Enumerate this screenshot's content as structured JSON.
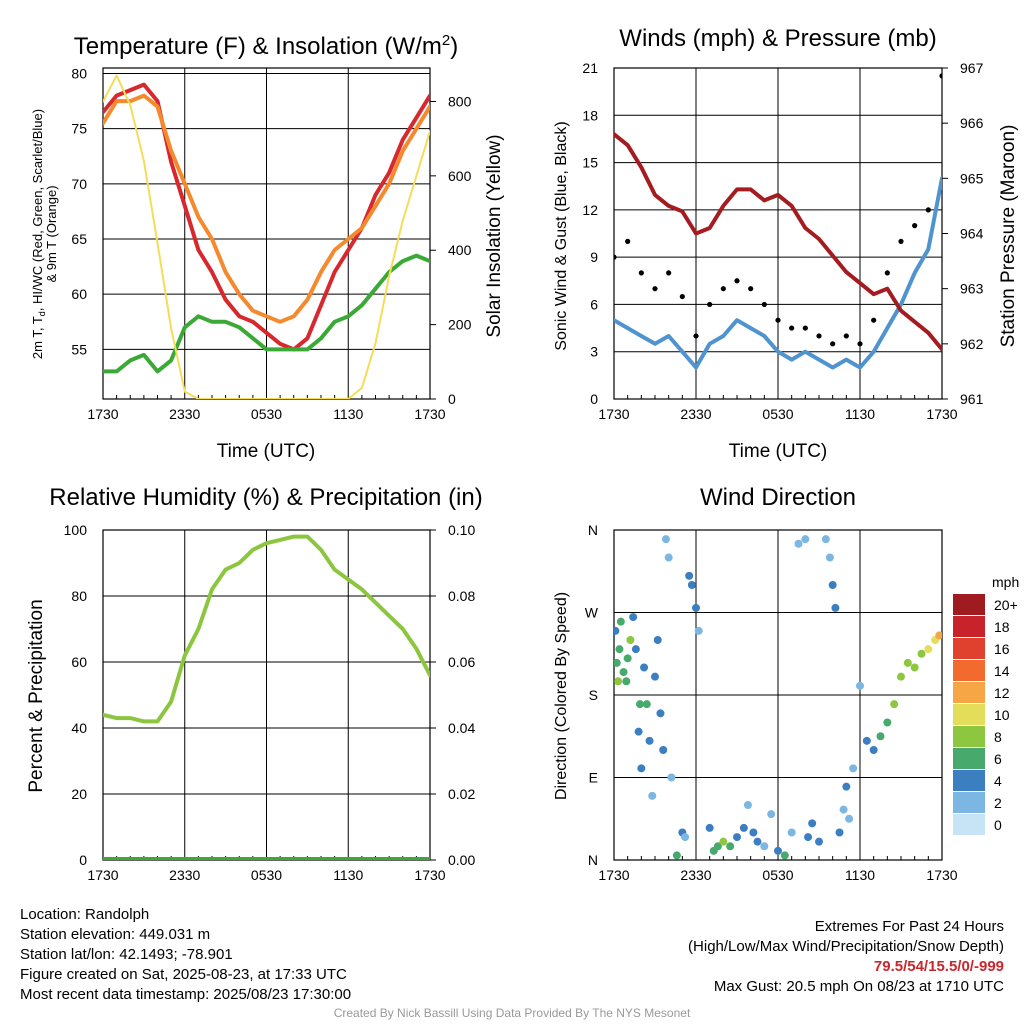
{
  "colors": {
    "temp": "#d7282e",
    "dewpoint": "#3aa935",
    "hiwc": "#e8b0b0",
    "temp9m": "#f48a2d",
    "insolation": "#f5dc5a",
    "wind": "#4f93cf",
    "gust": "#000000",
    "pressure": "#a51c20",
    "rh": "#8cc63f",
    "precip": "#3aa935"
  },
  "panels": {
    "temp": {
      "title": "Temperature (F) & Insolation (W/m²)",
      "ylabel_left": "2m T, Td, HI/WC (Red, Green, Scarlet/Blue) & 9m T (Orange)",
      "ylabel_right": "Solar Insolation (Yellow)",
      "xlabel": "Time (UTC)"
    },
    "winds": {
      "title": "Winds (mph) & Pressure (mb)",
      "ylabel_left": "Sonic Wind & Gust (Blue, Black)",
      "ylabel_right": "Station Pressure (Maroon)",
      "xlabel": "Time (UTC)"
    },
    "rh": {
      "title": "Relative Humidity (%) & Precipitation (in)",
      "ylabel_left": "Percent & Precipitation"
    },
    "dir": {
      "title": "Wind Direction",
      "ylabel_left": "Direction (Colored By Speed)",
      "legend_title": "mph",
      "legend_labels": [
        "20+",
        "18",
        "16",
        "14",
        "12",
        "10",
        "8",
        "6",
        "4",
        "2",
        "0"
      ],
      "legend_colors": [
        "#a01b1f",
        "#c8232a",
        "#e0402e",
        "#f26a2e",
        "#f7a645",
        "#e4dd5a",
        "#8dc63f",
        "#47a96b",
        "#3b7fc0",
        "#7bb7e2",
        "#c7e4f6"
      ]
    }
  },
  "chart_data": [
    {
      "type": "line",
      "title": "Temperature (F) & Insolation (W/m²)",
      "xlabel": "Time (UTC)",
      "x_ticks": [
        "1730",
        "2330",
        "0530",
        "1130",
        "1730"
      ],
      "y_ticks_left": [
        "55",
        "60",
        "65",
        "70",
        "75",
        "80"
      ],
      "y_ticks_right": [
        "0",
        "200",
        "400",
        "600",
        "800"
      ],
      "ylim_left": [
        50.5,
        80.5
      ],
      "ylim_right": [
        0,
        890
      ],
      "x_hours": [
        0,
        1,
        2,
        3,
        4,
        5,
        6,
        7,
        8,
        9,
        10,
        11,
        12,
        13,
        14,
        15,
        16,
        17,
        18,
        19,
        20,
        21,
        22,
        23,
        24
      ],
      "series": [
        {
          "name": "2m T",
          "axis": "left",
          "color": "temp",
          "values": [
            76.5,
            78,
            78.5,
            79,
            77.5,
            72,
            68,
            64,
            62,
            59.5,
            58,
            57.5,
            56.5,
            55.5,
            55,
            56,
            59,
            62,
            64,
            66,
            69,
            71,
            74,
            76,
            78
          ]
        },
        {
          "name": "9m T",
          "axis": "left",
          "color": "temp9m",
          "values": [
            75.5,
            77.5,
            77.5,
            78,
            77,
            73,
            70,
            67,
            65,
            62,
            60,
            58.5,
            58,
            57.5,
            58,
            59.5,
            62,
            64,
            65,
            66,
            68,
            70,
            73,
            75,
            77
          ]
        },
        {
          "name": "Td",
          "axis": "left",
          "color": "dewpoint",
          "values": [
            53,
            53,
            54,
            54.5,
            53,
            54,
            57,
            58,
            57.5,
            57.5,
            57,
            56,
            55,
            55,
            55,
            55,
            56,
            57.5,
            58,
            59,
            60.5,
            62,
            63,
            63.5,
            63
          ]
        },
        {
          "name": "Insolation",
          "axis": "right",
          "color": "insolation",
          "values": [
            800,
            870,
            790,
            640,
            420,
            190,
            20,
            0,
            0,
            0,
            0,
            0,
            0,
            0,
            0,
            0,
            0,
            0,
            0,
            30,
            150,
            330,
            480,
            600,
            720
          ]
        }
      ]
    },
    {
      "type": "line",
      "title": "Winds (mph) & Pressure (mb)",
      "xlabel": "Time (UTC)",
      "x_ticks": [
        "1730",
        "2330",
        "0530",
        "1130",
        "1730"
      ],
      "y_ticks_left": [
        "0",
        "3",
        "6",
        "9",
        "12",
        "15",
        "18",
        "21"
      ],
      "y_ticks_right": [
        "961",
        "962",
        "963",
        "964",
        "965",
        "966",
        "967"
      ],
      "ylim_left": [
        0,
        21
      ],
      "ylim_right": [
        961,
        967
      ],
      "x_hours": [
        0,
        1,
        2,
        3,
        4,
        5,
        6,
        7,
        8,
        9,
        10,
        11,
        12,
        13,
        14,
        15,
        16,
        17,
        18,
        19,
        20,
        21,
        22,
        23,
        24
      ],
      "series": [
        {
          "name": "Sonic Wind",
          "axis": "left",
          "color": "wind",
          "values": [
            5,
            4.5,
            4,
            3.5,
            4,
            3,
            2,
            3.5,
            4,
            5,
            4.5,
            4,
            3,
            2.5,
            3,
            2.5,
            2,
            2.5,
            2,
            3,
            4.5,
            6,
            8,
            9.5,
            14
          ]
        },
        {
          "name": "Gust",
          "axis": "left",
          "color": "gust",
          "values": [
            9,
            10,
            8,
            7,
            8,
            6.5,
            4,
            6,
            7,
            7.5,
            7,
            6,
            5,
            4.5,
            4.5,
            4,
            3.5,
            4,
            3.5,
            5,
            8,
            10,
            11,
            12,
            20.5
          ]
        },
        {
          "name": "Station Pressure",
          "axis": "right",
          "color": "pressure",
          "values": [
            965.8,
            965.6,
            965.2,
            964.7,
            964.5,
            964.4,
            964.0,
            964.1,
            964.5,
            964.8,
            964.8,
            964.6,
            964.7,
            964.5,
            964.1,
            963.9,
            963.6,
            963.3,
            963.1,
            962.9,
            963.0,
            962.6,
            962.4,
            962.2,
            961.9
          ]
        }
      ]
    },
    {
      "type": "line",
      "title": "Relative Humidity (%) & Precipitation (in)",
      "x_ticks": [
        "1730",
        "2330",
        "0530",
        "1130",
        "1730"
      ],
      "y_ticks_left": [
        "0",
        "20",
        "40",
        "60",
        "80",
        "100"
      ],
      "y_ticks_right": [
        "0.00",
        "0.02",
        "0.04",
        "0.06",
        "0.08",
        "0.10"
      ],
      "ylim_left": [
        0,
        100
      ],
      "ylim_right": [
        0,
        0.1
      ],
      "x_hours": [
        0,
        1,
        2,
        3,
        4,
        5,
        6,
        7,
        8,
        9,
        10,
        11,
        12,
        13,
        14,
        15,
        16,
        17,
        18,
        19,
        20,
        21,
        22,
        23,
        24
      ],
      "series": [
        {
          "name": "RH",
          "axis": "left",
          "color": "rh",
          "values": [
            44,
            43,
            43,
            42,
            42,
            48,
            62,
            70,
            82,
            88,
            90,
            94,
            96,
            97,
            98,
            98,
            94,
            88,
            85,
            82,
            78,
            74,
            70,
            64,
            56
          ]
        },
        {
          "name": "Precipitation",
          "axis": "right",
          "color": "precip",
          "values": [
            0,
            0,
            0,
            0,
            0,
            0,
            0,
            0,
            0,
            0,
            0,
            0,
            0,
            0,
            0,
            0,
            0,
            0,
            0,
            0,
            0,
            0,
            0,
            0,
            0
          ]
        }
      ]
    },
    {
      "type": "scatter",
      "title": "Wind Direction",
      "x_ticks": [
        "1730",
        "2330",
        "0530",
        "1130",
        "1730"
      ],
      "y_ticks": [
        "N",
        "E",
        "S",
        "W",
        "N"
      ],
      "ylim": [
        0,
        360
      ],
      "points": [
        [
          0.1,
          250,
          4
        ],
        [
          0.2,
          215,
          6
        ],
        [
          0.3,
          195,
          7
        ],
        [
          0.4,
          230,
          5
        ],
        [
          0.5,
          260,
          5
        ],
        [
          0.7,
          205,
          6
        ],
        [
          0.9,
          195,
          6
        ],
        [
          1.0,
          220,
          6
        ],
        [
          1.2,
          240,
          7
        ],
        [
          1.4,
          265,
          3
        ],
        [
          1.6,
          230,
          4
        ],
        [
          1.8,
          140,
          4
        ],
        [
          1.9,
          170,
          5
        ],
        [
          2.0,
          100,
          4
        ],
        [
          2.2,
          210,
          3
        ],
        [
          2.4,
          170,
          5
        ],
        [
          2.6,
          130,
          4
        ],
        [
          2.8,
          70,
          2
        ],
        [
          3.0,
          200,
          4
        ],
        [
          3.2,
          240,
          4
        ],
        [
          3.4,
          160,
          3
        ],
        [
          3.6,
          120,
          3
        ],
        [
          3.8,
          350,
          1
        ],
        [
          4.0,
          330,
          1
        ],
        [
          4.2,
          90,
          2
        ],
        [
          4.6,
          5,
          6
        ],
        [
          5.0,
          30,
          4
        ],
        [
          5.2,
          25,
          2
        ],
        [
          5.5,
          310,
          3
        ],
        [
          5.7,
          300,
          4
        ],
        [
          6.0,
          275,
          3
        ],
        [
          6.2,
          250,
          2
        ],
        [
          7.0,
          35,
          4
        ],
        [
          7.3,
          10,
          5
        ],
        [
          7.6,
          15,
          6
        ],
        [
          8.0,
          20,
          7
        ],
        [
          8.5,
          15,
          6
        ],
        [
          9.0,
          25,
          3
        ],
        [
          9.5,
          35,
          4
        ],
        [
          9.8,
          60,
          2
        ],
        [
          10.2,
          30,
          4
        ],
        [
          10.5,
          20,
          3
        ],
        [
          11.0,
          15,
          2
        ],
        [
          11.5,
          50,
          2
        ],
        [
          12.0,
          10,
          4
        ],
        [
          12.5,
          5,
          5
        ],
        [
          13.0,
          30,
          2
        ],
        [
          13.5,
          345,
          2
        ],
        [
          14.0,
          350,
          1
        ],
        [
          14.2,
          25,
          3
        ],
        [
          14.5,
          40,
          3
        ],
        [
          15.0,
          20,
          4
        ],
        [
          15.5,
          350,
          2
        ],
        [
          15.8,
          330,
          2
        ],
        [
          16.0,
          300,
          3
        ],
        [
          16.2,
          275,
          3
        ],
        [
          16.5,
          30,
          4
        ],
        [
          16.8,
          55,
          2
        ],
        [
          17.0,
          80,
          3
        ],
        [
          17.2,
          45,
          2
        ],
        [
          17.5,
          100,
          2
        ],
        [
          18.0,
          190,
          1
        ],
        [
          18.5,
          130,
          3
        ],
        [
          19.0,
          120,
          4
        ],
        [
          19.5,
          135,
          5
        ],
        [
          20.0,
          150,
          6
        ],
        [
          20.5,
          170,
          7
        ],
        [
          21.0,
          200,
          7
        ],
        [
          21.5,
          215,
          7
        ],
        [
          22.0,
          210,
          8
        ],
        [
          22.5,
          225,
          8
        ],
        [
          23.0,
          230,
          9
        ],
        [
          23.5,
          240,
          9
        ],
        [
          23.8,
          245,
          11
        ]
      ]
    }
  ],
  "info": {
    "location": "Location: Randolph",
    "elevation": "Station elevation: 449.031 m",
    "latlon": "Station lat/lon: 42.1493; -78.901",
    "created": "Figure created on Sat, 2025-08-23, at 17:33 UTC",
    "recent": "Most recent data timestamp: 2025/08/23 17:30:00"
  },
  "extremes": {
    "title": "Extremes For Past 24 Hours",
    "subtitle": "(High/Low/Max Wind/Precipitation/Snow Depth)",
    "values": "79.5/54/15.5/0/-999",
    "max_gust": "Max Gust: 20.5 mph On 08/23 at 1710 UTC"
  },
  "credit": "Created By Nick Bassill Using Data Provided By The NYS Mesonet"
}
